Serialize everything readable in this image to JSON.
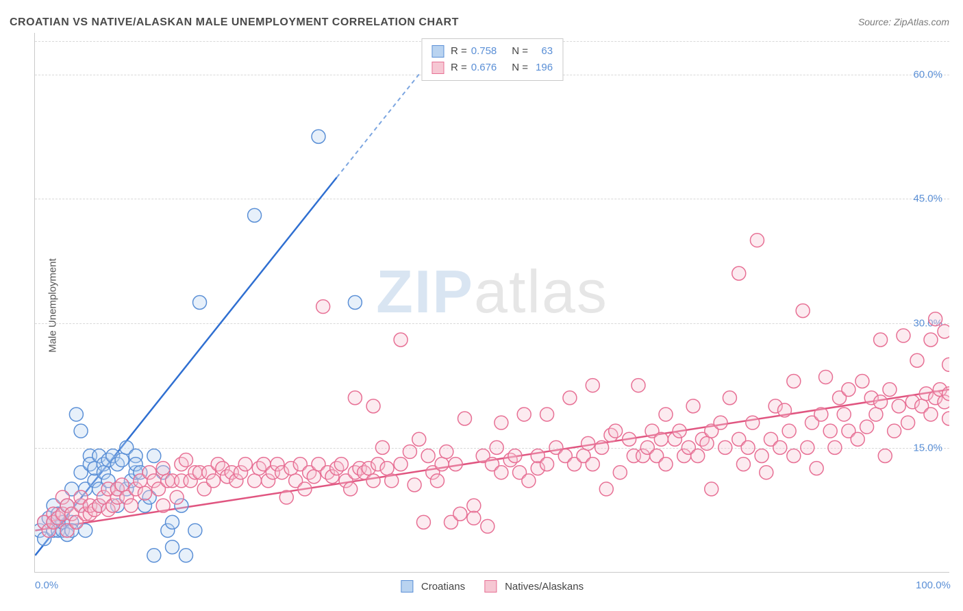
{
  "title": "CROATIAN VS NATIVE/ALASKAN MALE UNEMPLOYMENT CORRELATION CHART",
  "source_label": "Source: ZipAtlas.com",
  "y_axis_label": "Male Unemployment",
  "watermark_a": "ZIP",
  "watermark_b": "atlas",
  "chart": {
    "type": "scatter",
    "xlim": [
      0,
      100
    ],
    "ylim": [
      0,
      65
    ],
    "y_ticks": [
      15,
      30,
      45,
      60
    ],
    "y_tick_labels": [
      "15.0%",
      "30.0%",
      "45.0%",
      "60.0%"
    ],
    "x_ticks": [
      0,
      100
    ],
    "x_tick_labels": [
      "0.0%",
      "100.0%"
    ],
    "background_color": "#ffffff",
    "grid_color": "#d8d8d8",
    "axis_color": "#c9c9c9",
    "marker_radius": 10,
    "legend_stats": [
      {
        "r_label": "R =",
        "r_val": "0.758",
        "n_label": "N =",
        "n_val": "63",
        "swatch_fill": "#b9d3f0",
        "swatch_stroke": "#5a8fd6"
      },
      {
        "r_label": "R =",
        "r_val": "0.676",
        "n_label": "N =",
        "n_val": "196",
        "swatch_fill": "#f6c7d3",
        "swatch_stroke": "#e76f94"
      }
    ],
    "x_legend": [
      {
        "label": "Croatians",
        "swatch_fill": "#b9d3f0",
        "swatch_stroke": "#5a8fd6"
      },
      {
        "label": "Natives/Alaskans",
        "swatch_fill": "#f6c7d3",
        "swatch_stroke": "#e76f94"
      }
    ],
    "series": [
      {
        "name": "Croatians",
        "fill": "#b9d3f0",
        "stroke": "#5a8fd6",
        "trend_color": "#2f6fd1",
        "trend_dash_color": "#7ba5e0",
        "trend": {
          "x1": 0,
          "y1": 2,
          "x2": 42,
          "y2": 60,
          "solid_until_x": 33
        },
        "points": [
          [
            0.5,
            5
          ],
          [
            1,
            6
          ],
          [
            1,
            4
          ],
          [
            1.5,
            6.5
          ],
          [
            2,
            5
          ],
          [
            2,
            6
          ],
          [
            2,
            8
          ],
          [
            2.5,
            5
          ],
          [
            2.5,
            7
          ],
          [
            3,
            5
          ],
          [
            3,
            6
          ],
          [
            3.5,
            4.5
          ],
          [
            3.5,
            8
          ],
          [
            4,
            10
          ],
          [
            4,
            6
          ],
          [
            4,
            5
          ],
          [
            4.5,
            19
          ],
          [
            5,
            17
          ],
          [
            5,
            12
          ],
          [
            5,
            8
          ],
          [
            5.5,
            5
          ],
          [
            5.5,
            10
          ],
          [
            6,
            14
          ],
          [
            6,
            13
          ],
          [
            6.5,
            11
          ],
          [
            6.5,
            12.5
          ],
          [
            7,
            10
          ],
          [
            7,
            14
          ],
          [
            7,
            8
          ],
          [
            7.5,
            13
          ],
          [
            7.5,
            12
          ],
          [
            8,
            13.5
          ],
          [
            8,
            11
          ],
          [
            8.5,
            14
          ],
          [
            9,
            13
          ],
          [
            9,
            8
          ],
          [
            9,
            10
          ],
          [
            9.5,
            13.5
          ],
          [
            10,
            15
          ],
          [
            10,
            10
          ],
          [
            10.5,
            11
          ],
          [
            11,
            12
          ],
          [
            11,
            14
          ],
          [
            11,
            13
          ],
          [
            11.5,
            12
          ],
          [
            12,
            8
          ],
          [
            12.5,
            9
          ],
          [
            13,
            2
          ],
          [
            13,
            14
          ],
          [
            14,
            12
          ],
          [
            14.5,
            5
          ],
          [
            15,
            6
          ],
          [
            15,
            3
          ],
          [
            16,
            8
          ],
          [
            16.5,
            2
          ],
          [
            17.5,
            5
          ],
          [
            18,
            32.5
          ],
          [
            24,
            43
          ],
          [
            31,
            52.5
          ],
          [
            35,
            32.5
          ]
        ]
      },
      {
        "name": "Natives/Alaskans",
        "fill": "#f6c7d3",
        "stroke": "#e76f94",
        "trend_color": "#e05580",
        "trend": {
          "x1": 0,
          "y1": 5,
          "x2": 100,
          "y2": 22
        },
        "points": [
          [
            1,
            6
          ],
          [
            1.5,
            5
          ],
          [
            2,
            7
          ],
          [
            2,
            6
          ],
          [
            2.5,
            6.5
          ],
          [
            3,
            7
          ],
          [
            3,
            9
          ],
          [
            3.5,
            5
          ],
          [
            3.5,
            8
          ],
          [
            4,
            7
          ],
          [
            4.5,
            6
          ],
          [
            5,
            8
          ],
          [
            5,
            9
          ],
          [
            5.5,
            7
          ],
          [
            6,
            7
          ],
          [
            6,
            8
          ],
          [
            6.5,
            7.5
          ],
          [
            7,
            8
          ],
          [
            7.5,
            9
          ],
          [
            8,
            10
          ],
          [
            8,
            7.5
          ],
          [
            8.5,
            8
          ],
          [
            9,
            9
          ],
          [
            9,
            10
          ],
          [
            9.5,
            10.5
          ],
          [
            10,
            9
          ],
          [
            10.5,
            8
          ],
          [
            11,
            10
          ],
          [
            11.5,
            11
          ],
          [
            12,
            9.5
          ],
          [
            12.5,
            12
          ],
          [
            13,
            11
          ],
          [
            13.5,
            10
          ],
          [
            14,
            12.5
          ],
          [
            14,
            8
          ],
          [
            14.5,
            11
          ],
          [
            15,
            11
          ],
          [
            15.5,
            9
          ],
          [
            16,
            11
          ],
          [
            16,
            13
          ],
          [
            16.5,
            13.5
          ],
          [
            17,
            11
          ],
          [
            17.5,
            12
          ],
          [
            18,
            12
          ],
          [
            18.5,
            10
          ],
          [
            19,
            12
          ],
          [
            19.5,
            11
          ],
          [
            20,
            13
          ],
          [
            20.5,
            12.5
          ],
          [
            21,
            11.5
          ],
          [
            21.5,
            12
          ],
          [
            22,
            11
          ],
          [
            22.5,
            12
          ],
          [
            23,
            13
          ],
          [
            24,
            11
          ],
          [
            24.5,
            12.5
          ],
          [
            25,
            13
          ],
          [
            25.5,
            11
          ],
          [
            26,
            12
          ],
          [
            26.5,
            13
          ],
          [
            27,
            12
          ],
          [
            27.5,
            9
          ],
          [
            28,
            12.5
          ],
          [
            28.5,
            11
          ],
          [
            29,
            13
          ],
          [
            29.5,
            10
          ],
          [
            30,
            12
          ],
          [
            30.5,
            11.5
          ],
          [
            31,
            13
          ],
          [
            31.5,
            32
          ],
          [
            32,
            12
          ],
          [
            32.5,
            11.5
          ],
          [
            33,
            12.5
          ],
          [
            33.5,
            13
          ],
          [
            34,
            11
          ],
          [
            34.5,
            10
          ],
          [
            35,
            12
          ],
          [
            35,
            21
          ],
          [
            35.5,
            12.5
          ],
          [
            36,
            12
          ],
          [
            36.5,
            12.5
          ],
          [
            37,
            11
          ],
          [
            37,
            20
          ],
          [
            37.5,
            13
          ],
          [
            38,
            15
          ],
          [
            38.5,
            12.5
          ],
          [
            39,
            11
          ],
          [
            40,
            28
          ],
          [
            40,
            13
          ],
          [
            41,
            14.5
          ],
          [
            41.5,
            10.5
          ],
          [
            42,
            16
          ],
          [
            42.5,
            6
          ],
          [
            43,
            14
          ],
          [
            43.5,
            12
          ],
          [
            44,
            11
          ],
          [
            44.5,
            13
          ],
          [
            45,
            14.5
          ],
          [
            45.5,
            6
          ],
          [
            46,
            13
          ],
          [
            46.5,
            7
          ],
          [
            47,
            18.5
          ],
          [
            48,
            8
          ],
          [
            48,
            6.5
          ],
          [
            49,
            14
          ],
          [
            49.5,
            5.5
          ],
          [
            50,
            13
          ],
          [
            50.5,
            15
          ],
          [
            51,
            12
          ],
          [
            51,
            18
          ],
          [
            52,
            13.5
          ],
          [
            52.5,
            14
          ],
          [
            53,
            12
          ],
          [
            53.5,
            19
          ],
          [
            54,
            11
          ],
          [
            55,
            12.5
          ],
          [
            55,
            14
          ],
          [
            56,
            13
          ],
          [
            56,
            19
          ],
          [
            57,
            15
          ],
          [
            58,
            14
          ],
          [
            58.5,
            21
          ],
          [
            59,
            13
          ],
          [
            60,
            14
          ],
          [
            60.5,
            15.5
          ],
          [
            61,
            13
          ],
          [
            61,
            22.5
          ],
          [
            62,
            15
          ],
          [
            62.5,
            10
          ],
          [
            63,
            16.5
          ],
          [
            63.5,
            17
          ],
          [
            64,
            12
          ],
          [
            65,
            16
          ],
          [
            65.5,
            14
          ],
          [
            66,
            22.5
          ],
          [
            66.5,
            14
          ],
          [
            67,
            15
          ],
          [
            67.5,
            17
          ],
          [
            68,
            14
          ],
          [
            68.5,
            16
          ],
          [
            69,
            13
          ],
          [
            69,
            19
          ],
          [
            70,
            16
          ],
          [
            70.5,
            17
          ],
          [
            71,
            14
          ],
          [
            71.5,
            15
          ],
          [
            72,
            20
          ],
          [
            72.5,
            14
          ],
          [
            73,
            16
          ],
          [
            73.5,
            15.5
          ],
          [
            74,
            17
          ],
          [
            74,
            10
          ],
          [
            75,
            18
          ],
          [
            75.5,
            15
          ],
          [
            76,
            21
          ],
          [
            77,
            16
          ],
          [
            77,
            36
          ],
          [
            77.5,
            13
          ],
          [
            78,
            15
          ],
          [
            78.5,
            18
          ],
          [
            79,
            40
          ],
          [
            79.5,
            14
          ],
          [
            80,
            12
          ],
          [
            80.5,
            16
          ],
          [
            81,
            20
          ],
          [
            81.5,
            15
          ],
          [
            82,
            19.5
          ],
          [
            82.5,
            17
          ],
          [
            83,
            14
          ],
          [
            83,
            23
          ],
          [
            84,
            31.5
          ],
          [
            84.5,
            15
          ],
          [
            85,
            18
          ],
          [
            85.5,
            12.5
          ],
          [
            86,
            19
          ],
          [
            86.5,
            23.5
          ],
          [
            87,
            17
          ],
          [
            87.5,
            15
          ],
          [
            88,
            21
          ],
          [
            88.5,
            19
          ],
          [
            89,
            17
          ],
          [
            89,
            22
          ],
          [
            90,
            16
          ],
          [
            90.5,
            23
          ],
          [
            91,
            17.5
          ],
          [
            91.5,
            21
          ],
          [
            92,
            19
          ],
          [
            92.5,
            20.5
          ],
          [
            92.5,
            28
          ],
          [
            93,
            14
          ],
          [
            93.5,
            22
          ],
          [
            94,
            17
          ],
          [
            94.5,
            20
          ],
          [
            95,
            28.5
          ],
          [
            95.5,
            18
          ],
          [
            96,
            20.5
          ],
          [
            96.5,
            25.5
          ],
          [
            97,
            20
          ],
          [
            97.5,
            21.5
          ],
          [
            98,
            28
          ],
          [
            98,
            19
          ],
          [
            98.5,
            30.5
          ],
          [
            98.5,
            21
          ],
          [
            99,
            22
          ],
          [
            99.5,
            29
          ],
          [
            99.5,
            20.5
          ],
          [
            100,
            21.5
          ],
          [
            100,
            18.5
          ],
          [
            100,
            25
          ]
        ]
      }
    ]
  }
}
